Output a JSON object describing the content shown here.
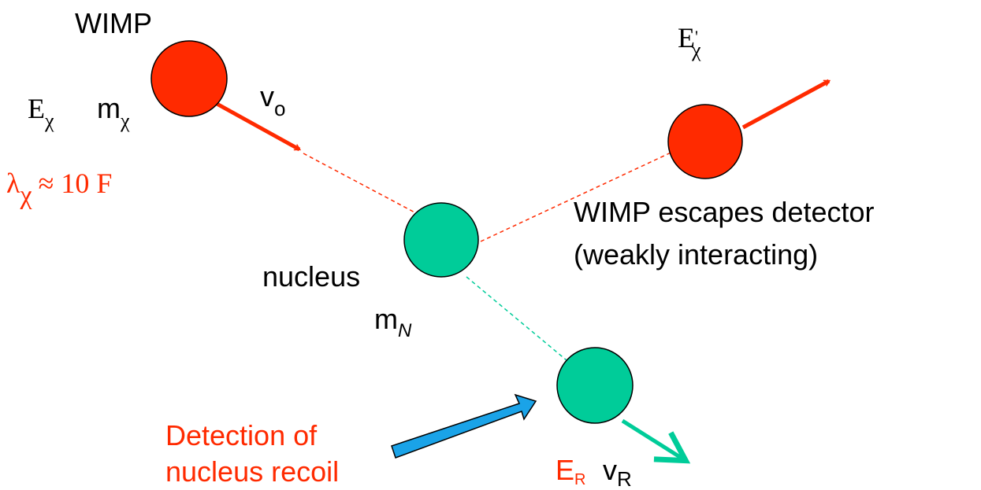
{
  "wimp": {
    "label": "WIMP",
    "energy": {
      "symbol": "E",
      "sub": "χ"
    },
    "mass": {
      "symbol": "m",
      "sub": "χ"
    },
    "velocity": {
      "symbol": "v",
      "sub": "o"
    }
  },
  "wavelength": {
    "symbol": "λ",
    "sub": "χ",
    "rest": "≈ 10 F"
  },
  "scattered": {
    "energy": {
      "symbol": "E",
      "prime": "'",
      "sub": "χ"
    },
    "note": [
      "WIMP escapes detector",
      "(weakly interacting)"
    ]
  },
  "nucleus": {
    "label": "nucleus",
    "mass": {
      "symbol": "m",
      "sub": "N"
    }
  },
  "recoil": {
    "detection": [
      "Detection of",
      "nucleus recoil"
    ],
    "energy": {
      "symbol": "E",
      "sub": "R"
    },
    "velocity": {
      "symbol": "v",
      "sub": "R"
    }
  }
}
